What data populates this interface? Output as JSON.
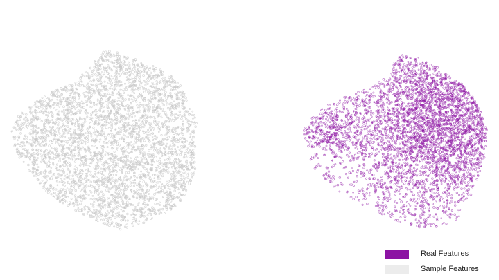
{
  "chart_data": [
    {
      "type": "scatter",
      "series": [
        {
          "name": "Sample Features",
          "color": "#c8c8c8",
          "description": "uniform roughly circular point cloud",
          "point_count_estimate": 7000
        }
      ],
      "title": "",
      "xlabel": "",
      "ylabel": "",
      "axes_visible": false,
      "grid": false
    },
    {
      "type": "scatter",
      "series": [
        {
          "name": "Real Features",
          "color": "#8c13a3",
          "description": "point cloud densest toward the upper right, sparse lower left",
          "point_count_estimate": 7000
        }
      ],
      "title": "",
      "xlabel": "",
      "ylabel": "",
      "axes_visible": false,
      "grid": false
    }
  ],
  "legend": {
    "placement": "bottom-right",
    "items": [
      {
        "label": "Real Features",
        "color": "#8c13a3"
      },
      {
        "label": "Sample Features",
        "color": "#ececec"
      }
    ]
  }
}
